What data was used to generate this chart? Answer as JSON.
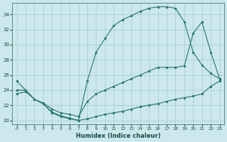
{
  "xlabel": "Humidex (Indice chaleur)",
  "bg_color": "#cce8ec",
  "grid_color": "#aacdd4",
  "line_color": "#2e7a72",
  "xlim": [
    -0.5,
    23.5
  ],
  "ylim": [
    19.5,
    35.5
  ],
  "xticks": [
    0,
    1,
    2,
    3,
    4,
    5,
    6,
    7,
    8,
    9,
    10,
    11,
    12,
    13,
    14,
    15,
    16,
    17,
    18,
    19,
    20,
    21,
    22,
    23
  ],
  "yticks": [
    20,
    22,
    24,
    26,
    28,
    30,
    32,
    34
  ],
  "line1_x": [
    0,
    1,
    2,
    3,
    4,
    5,
    6,
    7,
    8,
    9,
    10,
    11,
    12,
    13,
    14,
    15,
    16,
    17,
    18,
    19,
    20,
    21,
    22,
    23
  ],
  "line1_y": [
    25.2,
    24.0,
    22.8,
    22.2,
    21.1,
    20.6,
    20.3,
    20.0,
    20.2,
    20.5,
    20.8,
    21.0,
    21.2,
    21.5,
    21.8,
    22.0,
    22.2,
    22.5,
    22.8,
    23.0,
    23.2,
    23.5,
    24.5,
    25.2
  ],
  "line2_x": [
    0,
    1,
    2,
    3,
    4,
    5,
    6,
    7,
    8,
    9,
    10,
    11,
    12,
    13,
    14,
    15,
    16,
    17,
    18,
    19,
    20,
    21,
    22,
    23
  ],
  "line2_y": [
    24.0,
    24.0,
    22.8,
    22.2,
    21.0,
    20.5,
    20.2,
    20.0,
    25.2,
    29.0,
    30.8,
    32.5,
    33.3,
    33.8,
    34.4,
    34.8,
    35.0,
    35.0,
    34.8,
    33.0,
    29.0,
    27.3,
    26.2,
    25.5
  ],
  "line3_x": [
    0,
    1,
    2,
    3,
    4,
    5,
    6,
    7,
    8,
    9,
    10,
    11,
    12,
    13,
    14,
    15,
    16,
    17,
    18,
    19,
    20,
    21,
    22,
    23
  ],
  "line3_y": [
    23.5,
    23.8,
    22.8,
    22.3,
    21.5,
    21.0,
    20.8,
    20.5,
    22.5,
    23.5,
    24.0,
    24.5,
    25.0,
    25.5,
    26.0,
    26.5,
    27.0,
    27.0,
    27.0,
    27.2,
    31.5,
    33.0,
    29.0,
    25.5
  ]
}
